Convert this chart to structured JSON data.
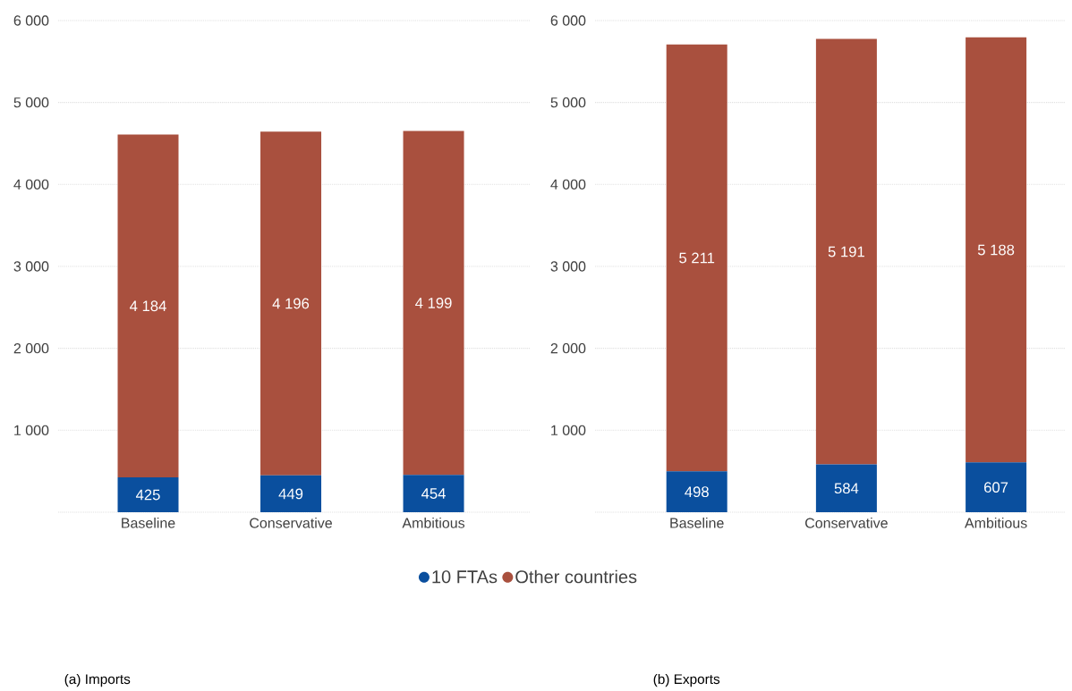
{
  "chart_data": [
    {
      "type": "bar",
      "stacked": true,
      "title": "(a) Imports",
      "categories": [
        "Baseline",
        "Conservative",
        "Ambitious"
      ],
      "ylim": [
        0,
        6000
      ],
      "yticks": [
        {
          "value": 0,
          "label": null
        },
        {
          "value": 1000,
          "label": "1 000"
        },
        {
          "value": 2000,
          "label": "2 000"
        },
        {
          "value": 3000,
          "label": "3 000"
        },
        {
          "value": 4000,
          "label": "4 000"
        },
        {
          "value": 5000,
          "label": "5 000"
        },
        {
          "value": 6000,
          "label": "6 000"
        }
      ],
      "grid": "y",
      "legend": "bottom",
      "marker": "circle",
      "series": [
        {
          "name": "10 FTAs",
          "color": "#0a4f9e",
          "values": [
            425,
            449,
            454
          ],
          "value_labels": [
            "425",
            "449",
            "454"
          ]
        },
        {
          "name": "Other countries",
          "color": "#a9503e",
          "values": [
            4184,
            4196,
            4199
          ],
          "value_labels": [
            "4 184",
            "4 196",
            "4 199"
          ]
        }
      ]
    },
    {
      "type": "bar",
      "stacked": true,
      "title": "(b) Exports",
      "categories": [
        "Baseline",
        "Conservative",
        "Ambitious"
      ],
      "ylim": [
        0,
        6000
      ],
      "yticks": [
        {
          "value": 0,
          "label": null
        },
        {
          "value": 1000,
          "label": "1 000"
        },
        {
          "value": 2000,
          "label": "2 000"
        },
        {
          "value": 3000,
          "label": "3 000"
        },
        {
          "value": 4000,
          "label": "4 000"
        },
        {
          "value": 5000,
          "label": "5 000"
        },
        {
          "value": 6000,
          "label": "6 000"
        }
      ],
      "grid": "y",
      "series": [
        {
          "color": "#0a4f9e",
          "values": [
            498,
            584,
            607
          ],
          "value_labels": [
            "498",
            "584",
            "607"
          ]
        },
        {
          "color": "#a9503e",
          "values": [
            5211,
            5191,
            5188
          ],
          "value_labels": [
            "5 211",
            "5 191",
            "5 188"
          ]
        }
      ]
    }
  ]
}
